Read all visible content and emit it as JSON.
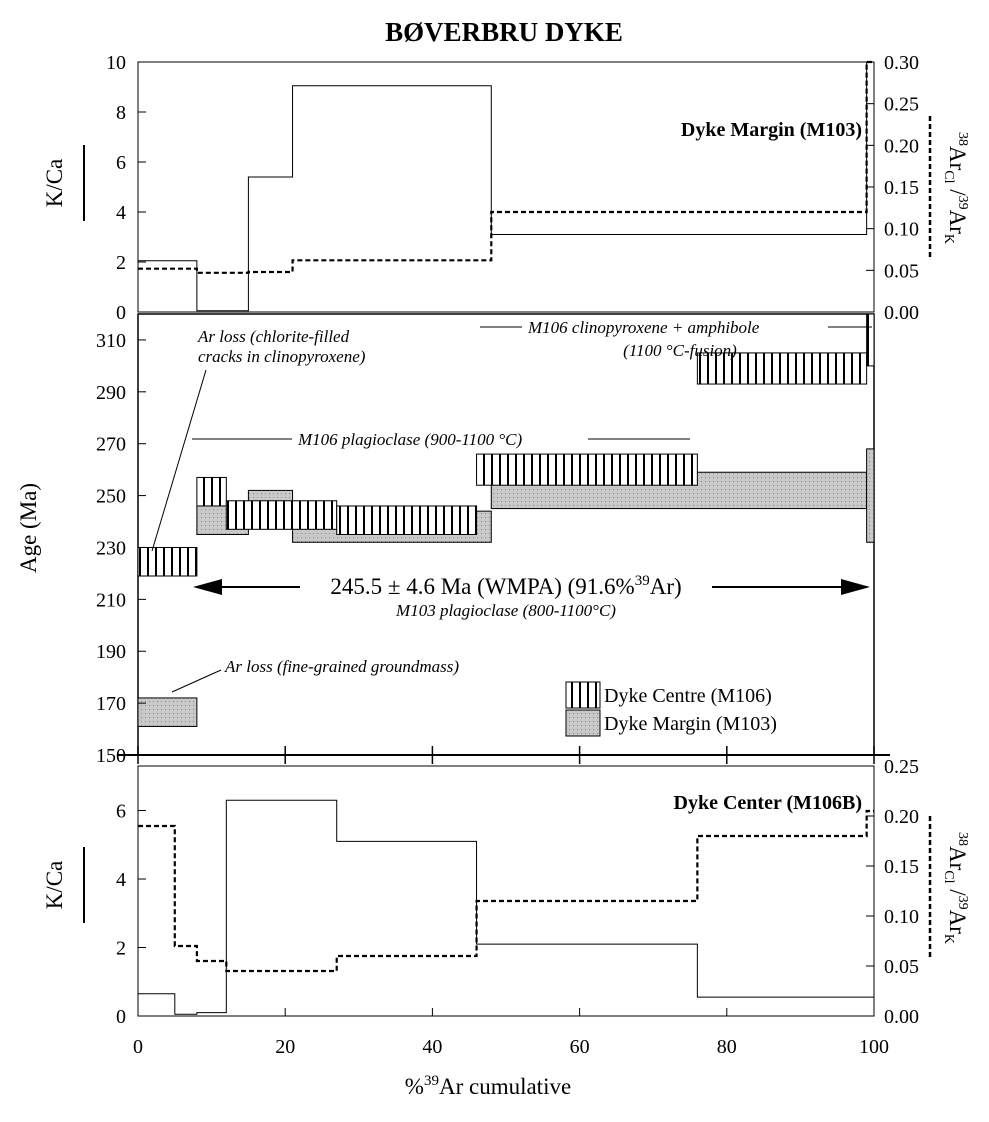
{
  "title": "BØVERBRU DYKE",
  "x_axis": {
    "label_prefix": "%",
    "label_sup": "39",
    "label_rest": "Ar cumulative",
    "ticks": [
      "0",
      "20",
      "40",
      "60",
      "80",
      "100"
    ]
  },
  "chart_data": [
    {
      "panel": "top",
      "type": "line",
      "label": "Dyke Margin (M103)",
      "x_range": [
        0,
        100
      ],
      "left_axis": {
        "label": "K/Ca",
        "ylim": [
          0,
          10
        ],
        "ticks": [
          "0",
          "2",
          "4",
          "6",
          "8",
          "10"
        ]
      },
      "right_axis": {
        "label": "38ArCl/39ArK",
        "ylim": [
          0,
          0.3
        ],
        "ticks": [
          "0.00",
          "0.05",
          "0.10",
          "0.15",
          "0.20",
          "0.25",
          "0.30"
        ]
      },
      "series": [
        {
          "axis": "left",
          "style": "solid",
          "steps": [
            [
              0,
              8,
              2.05
            ],
            [
              8,
              15,
              0.05
            ],
            [
              15,
              21,
              5.4
            ],
            [
              21,
              48,
              9.05
            ],
            [
              48,
              99,
              3.1
            ],
            [
              99,
              100,
              10
            ]
          ]
        },
        {
          "axis": "right",
          "style": "dashed",
          "steps": [
            [
              0,
              8,
              0.052
            ],
            [
              8,
              15,
              0.047
            ],
            [
              15,
              21,
              0.048
            ],
            [
              21,
              48,
              0.062
            ],
            [
              48,
              99,
              0.12
            ],
            [
              99,
              100,
              0.3
            ]
          ]
        }
      ]
    },
    {
      "panel": "middle",
      "type": "area",
      "x_range": [
        0,
        100
      ],
      "y_axis": {
        "label": "Age (Ma)",
        "ylim": [
          150,
          320
        ],
        "ticks": [
          "150",
          "170",
          "190",
          "210",
          "230",
          "250",
          "270",
          "290",
          "310"
        ]
      },
      "series": [
        {
          "name": "Dyke Centre (M106)",
          "fill": "vertical-hatch",
          "steps": [
            [
              0,
              8,
              219,
              230
            ],
            [
              8,
              12,
              246,
              257
            ],
            [
              12,
              27,
              237,
              248
            ],
            [
              27,
              46,
              235,
              246
            ],
            [
              46,
              76,
              254,
              266
            ],
            [
              76,
              99,
              293,
              305
            ],
            [
              99,
              100,
              300,
              320
            ]
          ]
        },
        {
          "name": "Dyke Margin (M103)",
          "fill": "grey",
          "steps": [
            [
              0,
              8,
              161,
              172
            ],
            [
              8,
              15,
              235,
              246
            ],
            [
              15,
              21,
              241,
              252
            ],
            [
              21,
              48,
              232,
              244
            ],
            [
              48,
              99,
              245,
              259
            ],
            [
              99,
              100,
              232,
              268
            ]
          ]
        }
      ],
      "annotations": [
        {
          "lines": [
            "Ar loss (chlorite-filled",
            "cracks in clinopyroxene)"
          ]
        },
        {
          "lines": [
            "M106 clinopyroxene + amphibole",
            "(1100 °C-fusion)"
          ]
        },
        {
          "lines": [
            "M106 plagioclase (900-1100 °C)"
          ]
        },
        {
          "lines": [
            "Ar loss (fine-grained groundmass)"
          ]
        }
      ],
      "plateau": {
        "main": "245.5 ± 4.6 Ma (WMPA) (91.6%",
        "sup": "39",
        "tail": "Ar)",
        "sub": "M103 plagioclase (800-1100°C)",
        "x_range": [
          8,
          100
        ]
      }
    },
    {
      "panel": "bottom",
      "type": "line",
      "label": "Dyke Center (M106B)",
      "x_range": [
        0,
        100
      ],
      "left_axis": {
        "label": "K/Ca",
        "ylim": [
          0,
          7.3
        ],
        "ticks": [
          "0",
          "2",
          "4",
          "6"
        ]
      },
      "right_axis": {
        "label": "38ArCl/39ArK",
        "ylim": [
          0,
          0.25
        ],
        "ticks": [
          "0.00",
          "0.05",
          "0.10",
          "0.15",
          "0.20",
          "0.25"
        ]
      },
      "series": [
        {
          "axis": "left",
          "style": "solid",
          "steps": [
            [
              0,
              5,
              0.65
            ],
            [
              5,
              8,
              0.05
            ],
            [
              8,
              12,
              0.1
            ],
            [
              12,
              27,
              6.3
            ],
            [
              27,
              46,
              5.1
            ],
            [
              46,
              76,
              2.1
            ],
            [
              76,
              100,
              0.55
            ]
          ]
        },
        {
          "axis": "right",
          "style": "dashed",
          "steps": [
            [
              0,
              5,
              0.19
            ],
            [
              5,
              8,
              0.07
            ],
            [
              8,
              12,
              0.055
            ],
            [
              12,
              27,
              0.045
            ],
            [
              27,
              46,
              0.06
            ],
            [
              46,
              76,
              0.115
            ],
            [
              76,
              99,
              0.18
            ],
            [
              99,
              100,
              0.205
            ]
          ]
        }
      ]
    }
  ]
}
